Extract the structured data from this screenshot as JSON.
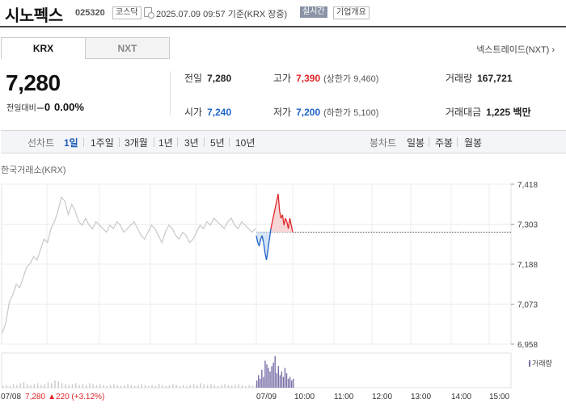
{
  "header": {
    "name": "시노펙스",
    "code": "025320",
    "market": "코스닥",
    "timestamp": "2025.07.09 09:57 기준(KRX 장중)",
    "realtime_label": "실시간",
    "company_info_label": "기업개요"
  },
  "tabs": [
    {
      "label": "KRX",
      "active": true
    },
    {
      "label": "NXT",
      "active": false
    }
  ],
  "nxt_link": "넥스트레이드(NXT)",
  "quote": {
    "price": "7,280",
    "change_label": "전일대비",
    "change_value": "0",
    "change_pct": "0.00%"
  },
  "stats": {
    "prev_close_label": "전일",
    "prev_close": "7,280",
    "high_label": "고가",
    "high": "7,390",
    "upper_limit": "(상한가 9,460)",
    "volume_label": "거래량",
    "volume": "167,721",
    "open_label": "시가",
    "open": "7,240",
    "low_label": "저가",
    "low": "7,200",
    "lower_limit": "(하한가 5,100)",
    "amount_label": "거래대금",
    "amount": "1,225 백만"
  },
  "periods": {
    "line_label": "선차트",
    "line_items": [
      "1일",
      "1주일",
      "3개월",
      "1년",
      "3년",
      "5년",
      "10년"
    ],
    "active": "1일",
    "candle_label": "봉차트",
    "candle_items": [
      "일봉",
      "주봉",
      "월봉"
    ]
  },
  "source_label": "한국거래소(KRX)",
  "volume_legend": "거래량",
  "footer": {
    "date": "07/08",
    "price": "7,280",
    "change": "▲220 (+3.12%)"
  },
  "chart_data": {
    "type": "line",
    "y_ticks": [
      "7,418",
      "7,303",
      "7,188",
      "7,073",
      "6,958"
    ],
    "ylim": [
      6958,
      7418
    ],
    "baseline": 7280,
    "x_labels": [
      "07/09",
      "10:00",
      "11:00",
      "12:00",
      "13:00",
      "14:00",
      "15:00"
    ],
    "series": [
      {
        "values": [
          6990,
          7020,
          7080,
          7100,
          7130,
          7120,
          7150,
          7180,
          7190,
          7210,
          7200,
          7230,
          7260,
          7250,
          7290,
          7310,
          7340,
          7380,
          7370,
          7330,
          7360,
          7340,
          7310,
          7300,
          7320,
          7300,
          7290,
          7310,
          7300,
          7290,
          7280,
          7300,
          7290,
          7310,
          7300,
          7280,
          7290,
          7300,
          7310,
          7290,
          7270,
          7260,
          7280,
          7300,
          7290,
          7270,
          7250,
          7280,
          7300,
          7290,
          7270,
          7260,
          7280,
          7270,
          7250,
          7260,
          7280,
          7300,
          7290,
          7310,
          7300,
          7320,
          7310,
          7300,
          7290,
          7310,
          7320,
          7300,
          7290,
          7310,
          7300,
          7290,
          7280,
          7290
        ]
      },
      {
        "values": [
          7270,
          7250,
          7240,
          7260,
          7270,
          7250,
          7220,
          7200,
          7230,
          7260,
          7290,
          7310,
          7330,
          7350,
          7370,
          7390,
          7340,
          7320,
          7330,
          7300,
          7320,
          7310,
          7290,
          7320,
          7300,
          7280
        ]
      }
    ],
    "volume": [
      2,
      3,
      2,
      4,
      3,
      5,
      6,
      4,
      3,
      4,
      5,
      3,
      4,
      6,
      5,
      8,
      7,
      5,
      4,
      3,
      4,
      5,
      3,
      4,
      3,
      5,
      4,
      3,
      4,
      3,
      2,
      3,
      4,
      3,
      2,
      3,
      4,
      3,
      2,
      3,
      4,
      3,
      2,
      3,
      2,
      4,
      3,
      2,
      3,
      4,
      3,
      2,
      3,
      2,
      3,
      4,
      3,
      5,
      4,
      3,
      4,
      3,
      2,
      3,
      4,
      3,
      2,
      3,
      4,
      3,
      2,
      3,
      2,
      3,
      8,
      14,
      10,
      20,
      12,
      30,
      26,
      22,
      18,
      24,
      28,
      35,
      16,
      24,
      14,
      18,
      12,
      22,
      16,
      10,
      12,
      8,
      10
    ]
  }
}
